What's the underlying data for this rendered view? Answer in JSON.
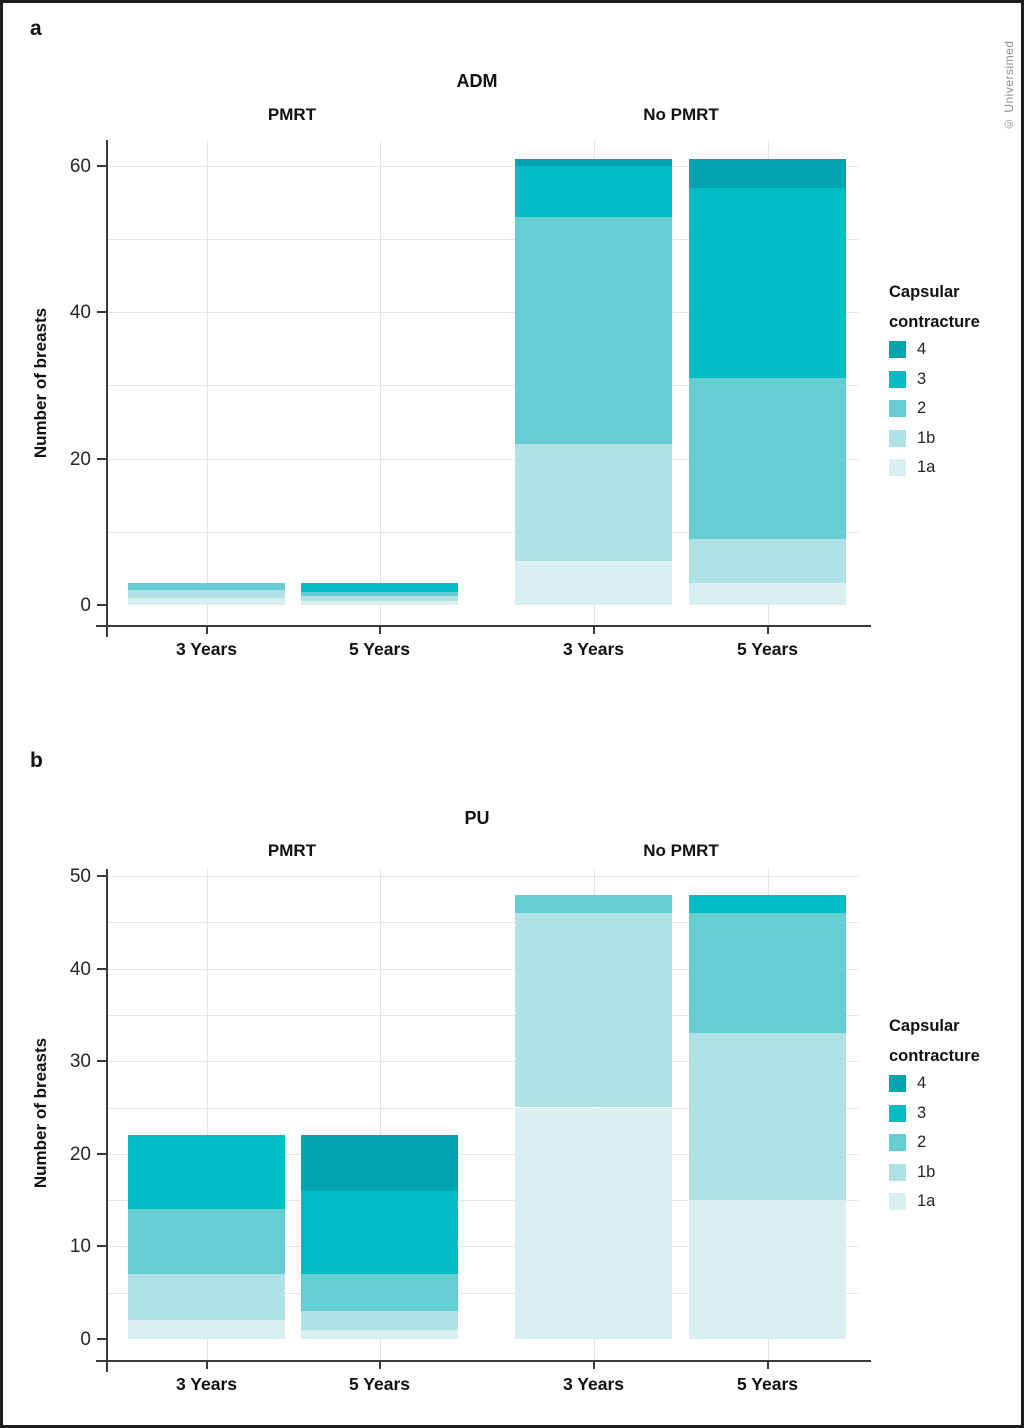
{
  "credit": "© Universimed",
  "panel_letters": {
    "a": "a",
    "b": "b"
  },
  "legend": {
    "title_lines": [
      "Capsular",
      "contracture"
    ],
    "entries": [
      {
        "label": "4",
        "color": "#00a3ae"
      },
      {
        "label": "3",
        "color": "#00bcc4"
      },
      {
        "label": "2",
        "color": "#66ced3"
      },
      {
        "label": "1b",
        "color": "#b0e1e4"
      },
      {
        "label": "1a",
        "color": "#d9eff1"
      }
    ]
  },
  "chart_data": [
    {
      "type": "bar",
      "stacked": true,
      "panel": "a",
      "title": "ADM",
      "ylabel": "Number of breasts",
      "ylim": [
        0,
        63
      ],
      "yticks": [
        0,
        20,
        40,
        60
      ],
      "grid": "on",
      "legend_position": "right",
      "stack_order_bottom_to_top": [
        "1a",
        "1b",
        "2",
        "3",
        "4"
      ],
      "facets": [
        {
          "label": "PMRT",
          "categories": [
            "3 Years",
            "5 Years"
          ],
          "series": [
            {
              "name": "1a",
              "values": [
                1,
                0.6
              ]
            },
            {
              "name": "1b",
              "values": [
                1,
                0.6
              ]
            },
            {
              "name": "2",
              "values": [
                1,
                0.55
              ]
            },
            {
              "name": "3",
              "values": [
                0,
                1.25
              ]
            },
            {
              "name": "4",
              "values": [
                0,
                0
              ]
            }
          ]
        },
        {
          "label": "No PMRT",
          "categories": [
            "3 Years",
            "5 Years"
          ],
          "series": [
            {
              "name": "1a",
              "values": [
                6,
                3
              ]
            },
            {
              "name": "1b",
              "values": [
                16,
                6
              ]
            },
            {
              "name": "2",
              "values": [
                31,
                22
              ]
            },
            {
              "name": "3",
              "values": [
                7,
                26
              ]
            },
            {
              "name": "4",
              "values": [
                1,
                4
              ]
            }
          ]
        }
      ]
    },
    {
      "type": "bar",
      "stacked": true,
      "panel": "b",
      "title": "PU",
      "ylabel": "Number of breasts",
      "ylim": [
        0,
        53
      ],
      "yticks": [
        0,
        10,
        20,
        30,
        40,
        50
      ],
      "grid": "on",
      "legend_position": "right",
      "stack_order_bottom_to_top": [
        "1a",
        "1b",
        "2",
        "3",
        "4"
      ],
      "facets": [
        {
          "label": "PMRT",
          "categories": [
            "3 Years",
            "5 Years"
          ],
          "series": [
            {
              "name": "1a",
              "values": [
                2,
                1
              ]
            },
            {
              "name": "1b",
              "values": [
                5,
                2
              ]
            },
            {
              "name": "2",
              "values": [
                7,
                4
              ]
            },
            {
              "name": "3",
              "values": [
                8,
                9
              ]
            },
            {
              "name": "4",
              "values": [
                0,
                6
              ]
            }
          ]
        },
        {
          "label": "No PMRT",
          "categories": [
            "3 Years",
            "5 Years"
          ],
          "series": [
            {
              "name": "1a",
              "values": [
                25,
                15
              ]
            },
            {
              "name": "1b",
              "values": [
                21,
                18
              ]
            },
            {
              "name": "2",
              "values": [
                2,
                13
              ]
            },
            {
              "name": "3",
              "values": [
                0,
                2
              ]
            },
            {
              "name": "4",
              "values": [
                0,
                0
              ]
            }
          ]
        }
      ]
    }
  ]
}
